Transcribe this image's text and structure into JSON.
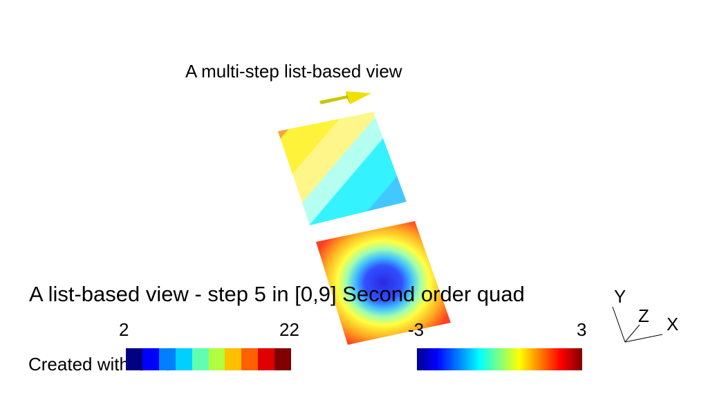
{
  "viewer": {
    "title_top": "A multi-step list-based view",
    "title_main": "A list-based view - step 5 in [0,9] Second order quad",
    "credit": "Created with Gmsh"
  },
  "scales": {
    "left": {
      "min": "2",
      "max": "22",
      "colors": [
        "#000080",
        "#0000ff",
        "#0080ff",
        "#00d0ff",
        "#60ffb0",
        "#b0ff40",
        "#ffc000",
        "#ff6000",
        "#e00000",
        "#800000"
      ]
    },
    "right": {
      "min": "-3",
      "max": "3",
      "colors": [
        "#00008f",
        "#0000ff",
        "#00ffff",
        "#ffff00",
        "#ff0000",
        "#800000"
      ]
    }
  },
  "axes": {
    "x": "X",
    "y": "Y",
    "z": "Z"
  }
}
